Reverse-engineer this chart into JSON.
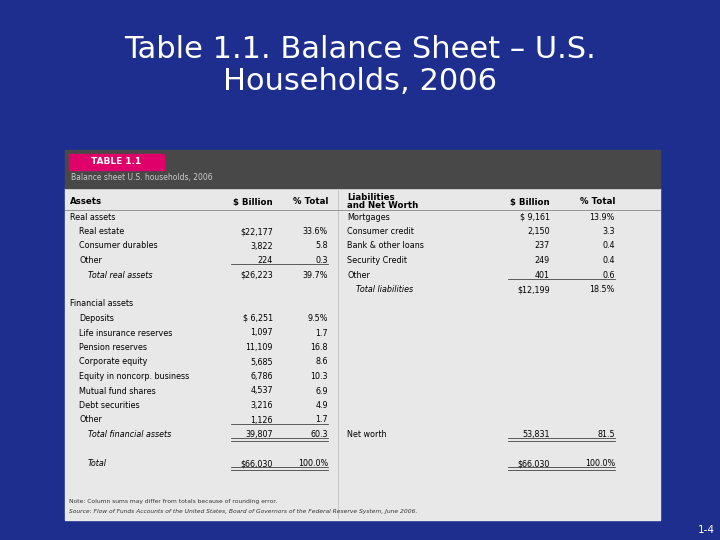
{
  "title_line1": "Table 1.1. Balance Sheet – U.S.",
  "title_line2": "Households, 2006",
  "title_color": "#ffffff",
  "title_fontsize": 22,
  "background_color": "#1e2e8e",
  "table_header_bg": "#484848",
  "table_label_bg": "#e0006a",
  "table_body_bg": "#e8e8e8",
  "table_label_text": "TABLE 1.1",
  "table_subtitle": "Balance sheet U.S. households, 2006",
  "note": "Note: Column sums may differ from totals because of rounding error.",
  "source": "Source: Flow of Funds Accounts of the United States, Board of Governors of the Federal Reserve System, June 2006.",
  "page_num": "1-4",
  "assets_rows": [
    {
      "label": "Real assets",
      "indent": 0,
      "italic": false,
      "bold": false,
      "dollar": "",
      "pct": ""
    },
    {
      "label": "Real estate",
      "indent": 1,
      "italic": false,
      "bold": false,
      "dollar": "$22,177",
      "pct": "33.6%"
    },
    {
      "label": "Consumer durables",
      "indent": 1,
      "italic": false,
      "bold": false,
      "dollar": "3,822",
      "pct": "5.8"
    },
    {
      "label": "Other",
      "indent": 1,
      "italic": false,
      "bold": false,
      "dollar": "224",
      "pct": "0.3",
      "underline_dollar": true
    },
    {
      "label": "Total real assets",
      "indent": 2,
      "italic": true,
      "bold": false,
      "dollar": "$26,223",
      "pct": "39.7%"
    },
    {
      "label": "",
      "indent": 0,
      "italic": false,
      "bold": false,
      "dollar": "",
      "pct": ""
    },
    {
      "label": "Financial assets",
      "indent": 0,
      "italic": false,
      "bold": false,
      "dollar": "",
      "pct": ""
    },
    {
      "label": "Deposits",
      "indent": 1,
      "italic": false,
      "bold": false,
      "dollar": "$ 6,251",
      "pct": "9.5%"
    },
    {
      "label": "Life insurance reserves",
      "indent": 1,
      "italic": false,
      "bold": false,
      "dollar": "1,097",
      "pct": "1.7"
    },
    {
      "label": "Pension reserves",
      "indent": 1,
      "italic": false,
      "bold": false,
      "dollar": "11,109",
      "pct": "16.8"
    },
    {
      "label": "Corporate equity",
      "indent": 1,
      "italic": false,
      "bold": false,
      "dollar": "5,685",
      "pct": "8.6"
    },
    {
      "label": "Equity in noncorp. business",
      "indent": 1,
      "italic": false,
      "bold": false,
      "dollar": "6,786",
      "pct": "10.3"
    },
    {
      "label": "Mutual fund shares",
      "indent": 1,
      "italic": false,
      "bold": false,
      "dollar": "4,537",
      "pct": "6.9"
    },
    {
      "label": "Debt securities",
      "indent": 1,
      "italic": false,
      "bold": false,
      "dollar": "3,216",
      "pct": "4.9"
    },
    {
      "label": "Other",
      "indent": 1,
      "italic": false,
      "bold": false,
      "dollar": "1,126",
      "pct": "1.7",
      "underline_dollar": true
    },
    {
      "label": "Total financial assets",
      "indent": 2,
      "italic": true,
      "bold": false,
      "dollar": "39,807",
      "pct": "60.3",
      "double_underline": true
    },
    {
      "label": "",
      "indent": 0,
      "italic": false,
      "bold": false,
      "dollar": "",
      "pct": ""
    },
    {
      "label": "Total",
      "indent": 2,
      "italic": true,
      "bold": false,
      "dollar": "$66,030",
      "pct": "100.0%",
      "double_underline": true
    }
  ],
  "liab_rows": [
    {
      "label": "Mortgages",
      "indent": 0,
      "italic": false,
      "bold": false,
      "dollar": "$ 9,161",
      "pct": "13.9%"
    },
    {
      "label": "Consumer credit",
      "indent": 0,
      "italic": false,
      "bold": false,
      "dollar": "2,150",
      "pct": "3.3"
    },
    {
      "label": "Bank & other loans",
      "indent": 0,
      "italic": false,
      "bold": false,
      "dollar": "237",
      "pct": "0.4"
    },
    {
      "label": "Security Credit",
      "indent": 0,
      "italic": false,
      "bold": false,
      "dollar": "249",
      "pct": "0.4"
    },
    {
      "label": "Other",
      "indent": 0,
      "italic": false,
      "bold": false,
      "dollar": "401",
      "pct": "0.6",
      "underline_dollar": true
    },
    {
      "label": "Total liabilities",
      "indent": 1,
      "italic": true,
      "bold": false,
      "dollar": "$12,199",
      "pct": "18.5%"
    },
    {
      "label": "",
      "indent": 0,
      "italic": false,
      "bold": false,
      "dollar": "",
      "pct": ""
    },
    {
      "label": "",
      "indent": 0,
      "italic": false,
      "bold": false,
      "dollar": "",
      "pct": ""
    },
    {
      "label": "",
      "indent": 0,
      "italic": false,
      "bold": false,
      "dollar": "",
      "pct": ""
    },
    {
      "label": "",
      "indent": 0,
      "italic": false,
      "bold": false,
      "dollar": "",
      "pct": ""
    },
    {
      "label": "",
      "indent": 0,
      "italic": false,
      "bold": false,
      "dollar": "",
      "pct": ""
    },
    {
      "label": "",
      "indent": 0,
      "italic": false,
      "bold": false,
      "dollar": "",
      "pct": ""
    },
    {
      "label": "",
      "indent": 0,
      "italic": false,
      "bold": false,
      "dollar": "",
      "pct": ""
    },
    {
      "label": "",
      "indent": 0,
      "italic": false,
      "bold": false,
      "dollar": "",
      "pct": ""
    },
    {
      "label": "",
      "indent": 0,
      "italic": false,
      "bold": false,
      "dollar": "",
      "pct": ""
    },
    {
      "label": "Net worth",
      "indent": 0,
      "italic": false,
      "bold": false,
      "dollar": "53,831",
      "pct": "81.5",
      "double_underline": true
    },
    {
      "label": "",
      "indent": 0,
      "italic": false,
      "bold": false,
      "dollar": "",
      "pct": ""
    },
    {
      "label": "",
      "indent": 0,
      "italic": false,
      "bold": false,
      "dollar": "$66,030",
      "pct": "100.0%",
      "double_underline": true
    }
  ]
}
